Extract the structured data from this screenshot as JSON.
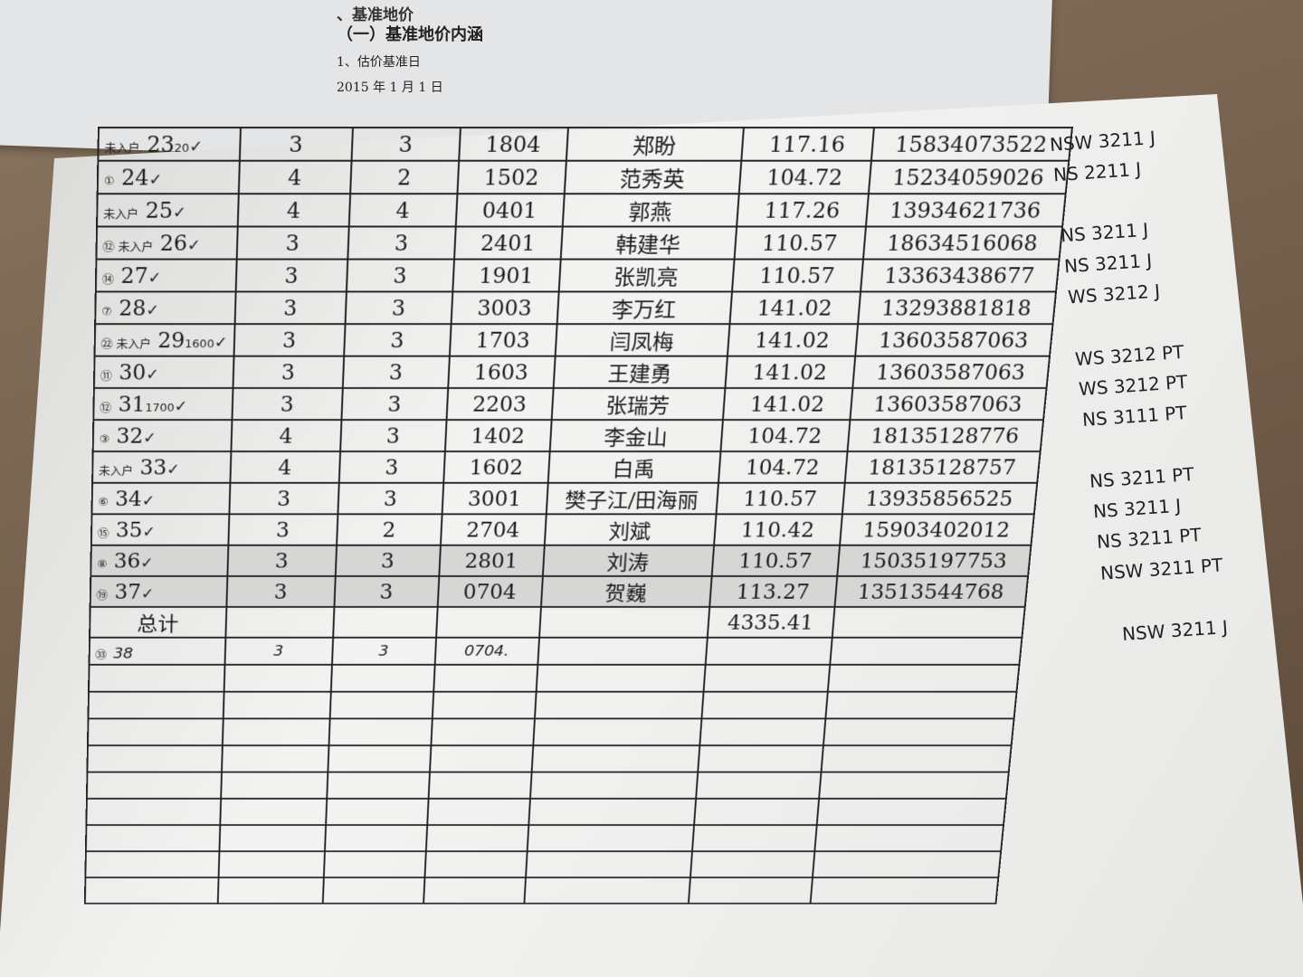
{
  "background_document": {
    "heading": "、基准地价",
    "section": "（一）基准地价内涵",
    "item": "1、估价基准日",
    "date": "2015 年 1 月 1 日"
  },
  "table": {
    "rows": [
      {
        "mark": "未入户",
        "no": "23",
        "note": "20",
        "check": "✓",
        "a": "3",
        "b": "3",
        "room": "1804",
        "name": "郑盼",
        "area": "117.16",
        "phone": "15834073522",
        "code": "NSW 3211 J"
      },
      {
        "mark": "①",
        "no": "24",
        "note": "",
        "check": "✓",
        "a": "4",
        "b": "2",
        "room": "1502",
        "name": "范秀英",
        "area": "104.72",
        "phone": "15234059026",
        "code": "NS 2211 J"
      },
      {
        "mark": "未入户",
        "no": "25",
        "note": "",
        "check": "✓",
        "a": "4",
        "b": "4",
        "room": "0401",
        "name": "郭燕",
        "area": "117.26",
        "phone": "13934621736",
        "code": ""
      },
      {
        "mark": "⑫ 未入户",
        "no": "26",
        "note": "",
        "check": "✓",
        "a": "3",
        "b": "3",
        "room": "2401",
        "name": "韩建华",
        "area": "110.57",
        "phone": "18634516068",
        "code": "NS 3211 J"
      },
      {
        "mark": "⑭",
        "no": "27",
        "note": "",
        "check": "✓",
        "a": "3",
        "b": "3",
        "room": "1901",
        "name": "张凯亮",
        "area": "110.57",
        "phone": "13363438677",
        "code": "NS 3211 J"
      },
      {
        "mark": "⑦",
        "no": "28",
        "note": "",
        "check": "✓",
        "a": "3",
        "b": "3",
        "room": "3003",
        "name": "李万红",
        "area": "141.02",
        "phone": "13293881818",
        "code": "WS 3212 J"
      },
      {
        "mark": "㉒ 未入户",
        "no": "29",
        "note": "1600",
        "check": "✓",
        "a": "3",
        "b": "3",
        "room": "1703",
        "name": "闫凤梅",
        "area": "141.02",
        "phone": "13603587063",
        "code": ""
      },
      {
        "mark": "⑪",
        "no": "30",
        "note": "",
        "check": "✓",
        "a": "3",
        "b": "3",
        "room": "1603",
        "name": "王建勇",
        "area": "141.02",
        "phone": "13603587063",
        "code": "WS 3212 PT"
      },
      {
        "mark": "⑫",
        "no": "31",
        "note": "1700",
        "check": "✓",
        "a": "3",
        "b": "3",
        "room": "2203",
        "name": "张瑞芳",
        "area": "141.02",
        "phone": "13603587063",
        "code": "WS 3212 PT"
      },
      {
        "mark": "③",
        "no": "32",
        "note": "",
        "check": "✓",
        "a": "4",
        "b": "3",
        "room": "1402",
        "name": "李金山",
        "area": "104.72",
        "phone": "18135128776",
        "code": "NS 3111 PT"
      },
      {
        "mark": "未入户",
        "no": "33",
        "note": "",
        "check": "✓",
        "a": "4",
        "b": "3",
        "room": "1602",
        "name": "白禹",
        "area": "104.72",
        "phone": "18135128757",
        "code": ""
      },
      {
        "mark": "⑥",
        "no": "34",
        "note": "",
        "check": "✓",
        "a": "3",
        "b": "3",
        "room": "3001",
        "name": "樊子江/田海丽",
        "area": "110.57",
        "phone": "13935856525",
        "code": "NS 3211 PT"
      },
      {
        "mark": "⑮",
        "no": "35",
        "note": "",
        "check": "✓",
        "a": "3",
        "b": "2",
        "room": "2704",
        "name": "刘斌",
        "area": "110.42",
        "phone": "15903402012",
        "code": "NS 3211 J"
      },
      {
        "mark": "⑧",
        "no": "36",
        "note": "",
        "check": "✓",
        "a": "3",
        "b": "3",
        "room": "2801",
        "name": "刘涛",
        "area": "110.57",
        "phone": "15035197753",
        "code": "NS 3211 PT"
      },
      {
        "mark": "⑲",
        "no": "37",
        "note": "",
        "check": "✓",
        "a": "3",
        "b": "3",
        "room": "0704",
        "name": "贺巍",
        "area": "113.27",
        "phone": "13513544768",
        "code": "NSW 3211 PT"
      }
    ],
    "total_label": "总计",
    "total_area": "4335.41",
    "handwritten_row": {
      "mark": "㉝",
      "no": "38",
      "a": "3",
      "b": "3",
      "room": "0704.",
      "code": "NSW 3211 J"
    }
  }
}
